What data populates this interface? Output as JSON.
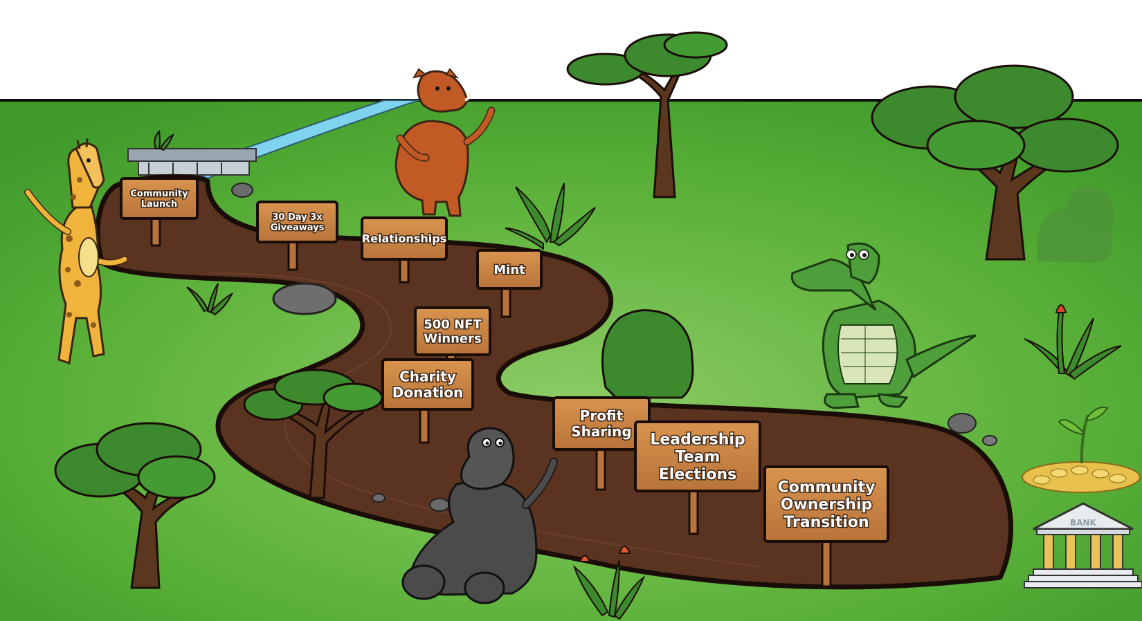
{
  "roadmap": {
    "signs": [
      {
        "lines": [
          "Community",
          "Launch"
        ]
      },
      {
        "lines": [
          "30 Day 3x",
          "Giveaways"
        ]
      },
      {
        "lines": [
          "Relationships"
        ]
      },
      {
        "lines": [
          "Mint"
        ]
      },
      {
        "lines": [
          "500 NFT",
          "Winners"
        ]
      },
      {
        "lines": [
          "Charity",
          "Donation"
        ]
      },
      {
        "lines": [
          "Profit",
          "Sharing"
        ]
      },
      {
        "lines": [
          "Leadership",
          "Team",
          "Elections"
        ]
      },
      {
        "lines": [
          "Community",
          "Ownership",
          "Transition"
        ]
      }
    ],
    "bank_label": "BANK"
  },
  "colors": {
    "grass": "#5cb23a",
    "grass_light": "#8fcc67",
    "path": "#5a3321",
    "path_outline": "#1a0d07",
    "sign_wood": "#c98440",
    "river": "#7fd3ef",
    "tree_foliage": "#3d8a2e",
    "trunk": "#5b3720"
  },
  "characters": [
    "giraffe",
    "warthog",
    "crocodile",
    "hippo"
  ]
}
